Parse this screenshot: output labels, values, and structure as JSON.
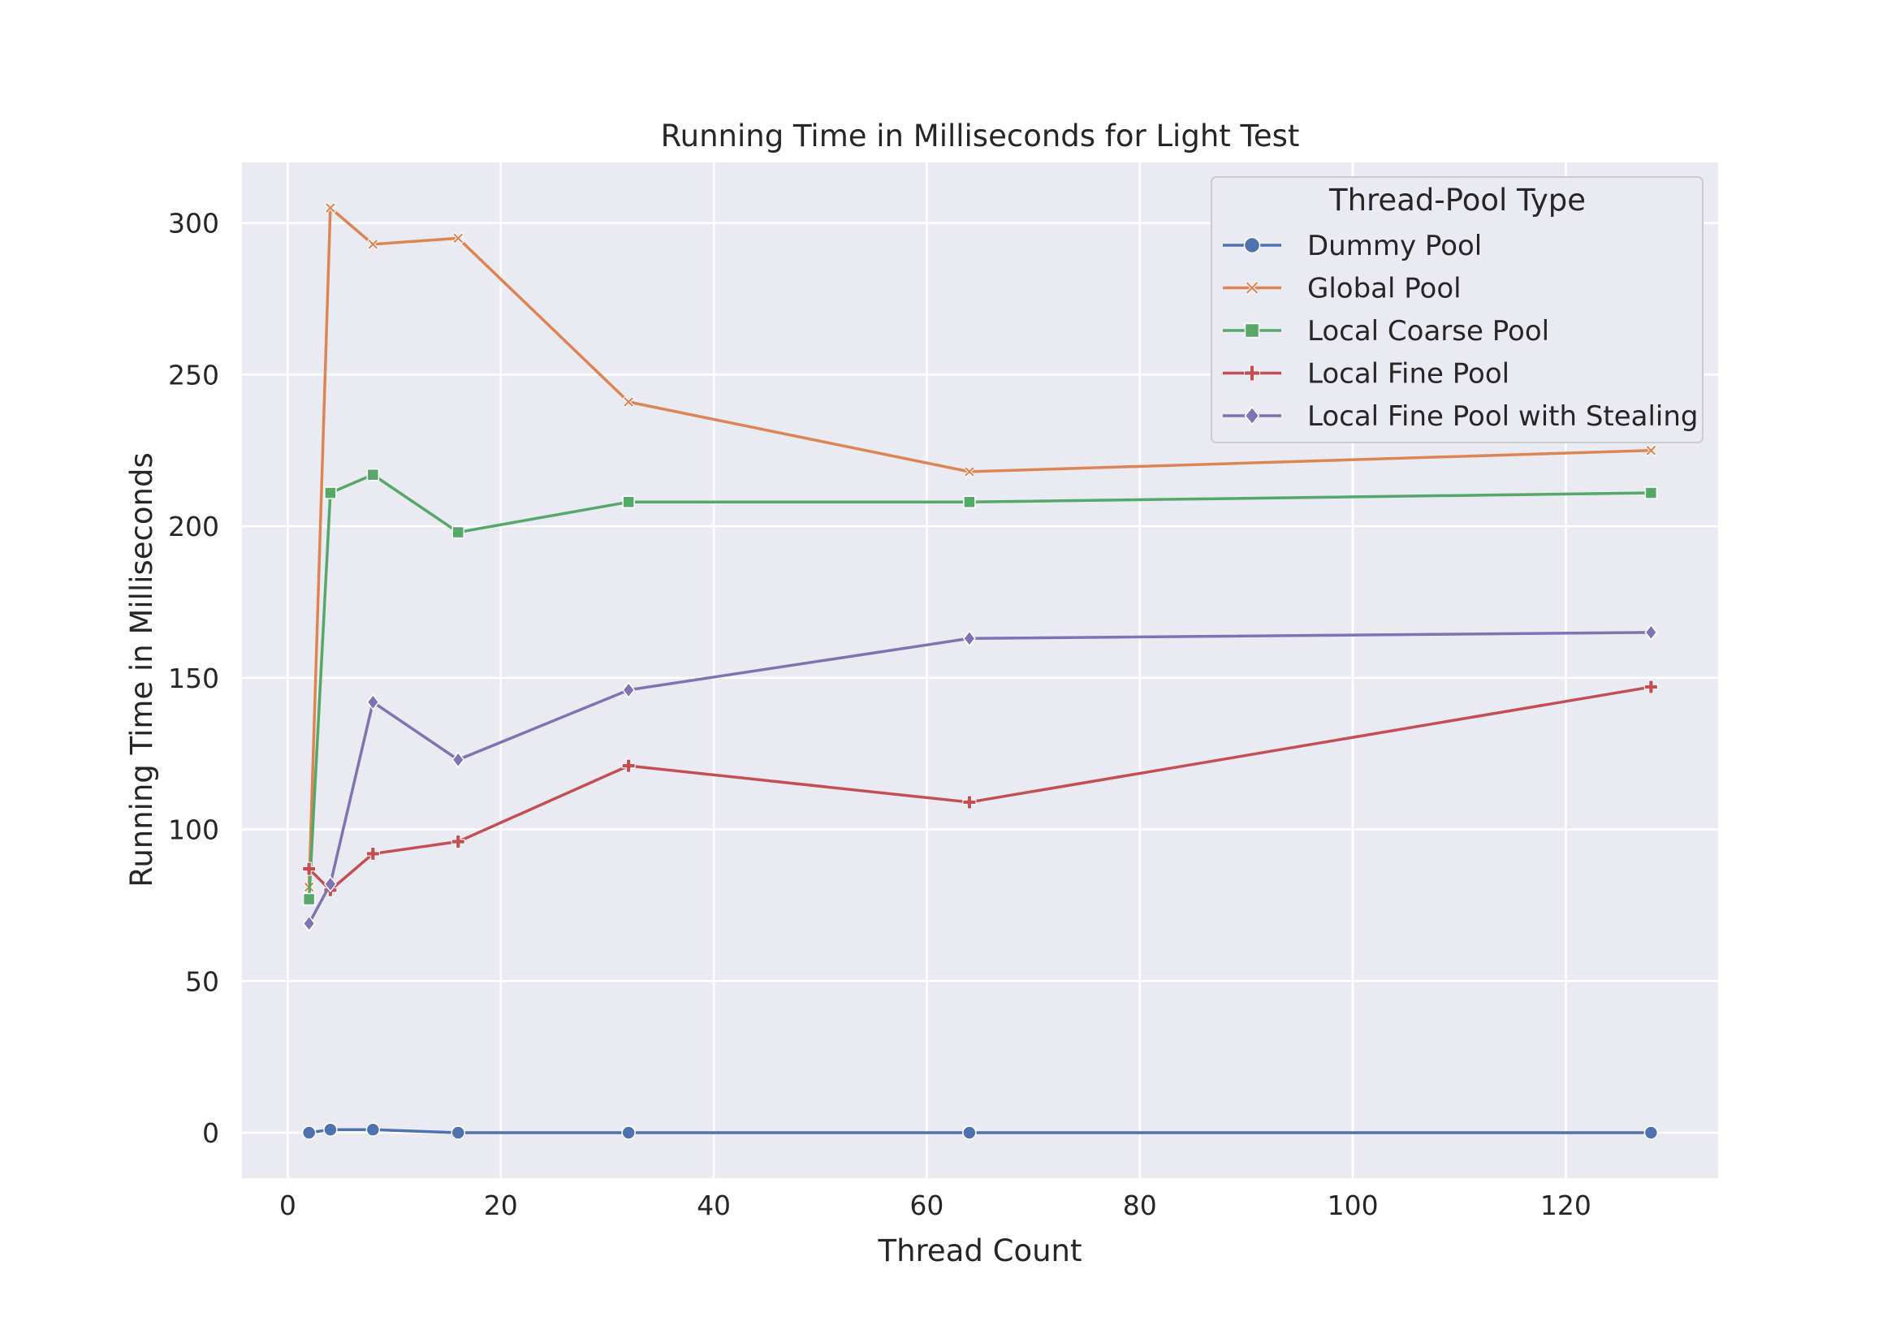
{
  "chart_data": {
    "type": "line",
    "title": "Running Time in Milliseconds for Light Test",
    "xlabel": "Thread Count",
    "ylabel": "Running Time in Milliseconds",
    "xlim": [
      -4.3,
      134.3
    ],
    "ylim": [
      -15,
      320
    ],
    "xticks": [
      0,
      20,
      40,
      60,
      80,
      100,
      120
    ],
    "yticks": [
      0,
      50,
      100,
      150,
      200,
      250,
      300
    ],
    "grid": true,
    "background": "#eaeaf2",
    "legend": {
      "title": "Thread-Pool Type",
      "placement": "top-right"
    },
    "x": [
      2,
      4,
      8,
      16,
      32,
      64,
      128
    ],
    "series": [
      {
        "name": "Dummy Pool",
        "color": "#4c72b0",
        "marker": "circle",
        "values": [
          0,
          1,
          1,
          0,
          0,
          0,
          0
        ]
      },
      {
        "name": "Global Pool",
        "color": "#dd8452",
        "marker": "x",
        "values": [
          81,
          305,
          293,
          295,
          241,
          218,
          225
        ]
      },
      {
        "name": "Local Coarse Pool",
        "color": "#55a868",
        "marker": "square",
        "values": [
          77,
          211,
          217,
          198,
          208,
          208,
          211
        ]
      },
      {
        "name": "Local Fine Pool",
        "color": "#c44e52",
        "marker": "plus",
        "values": [
          87,
          80,
          92,
          96,
          121,
          109,
          147
        ]
      },
      {
        "name": "Local Fine Pool with Stealing",
        "color": "#8172b3",
        "marker": "diamond",
        "values": [
          69,
          82,
          142,
          123,
          146,
          163,
          165
        ]
      }
    ]
  }
}
